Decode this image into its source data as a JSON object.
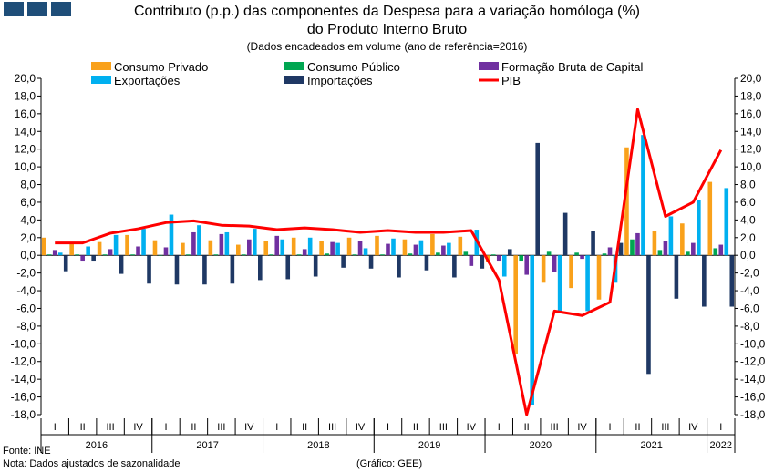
{
  "header": {
    "logo_icon": "three-blue-squares-icon",
    "title_line_1": "Contributo (p.p.) das componentes da Despesa para a variação homóloga (%)",
    "title_line_2": "do Produto Interno Bruto",
    "subtitle": "(Dados encadeados em volume (ano de referência=2016)"
  },
  "footer": {
    "source": "Fonte: INE",
    "note": "Nota: Dados ajustados de sazonalidade",
    "credit": "(Gráfico: GEE)"
  },
  "chart_data": {
    "type": "bar",
    "title": "Contributo (p.p.) das componentes da Despesa para a variação homóloga (%) do Produto Interno Bruto",
    "subtitle": "(Dados encadeados em volume (ano de referência=2016)",
    "categories": [
      "I",
      "II",
      "III",
      "IV",
      "I",
      "II",
      "III",
      "IV",
      "I",
      "II",
      "III",
      "IV",
      "I",
      "II",
      "III",
      "IV",
      "I",
      "II",
      "III",
      "IV",
      "I",
      "II",
      "III",
      "IV",
      "I"
    ],
    "years": [
      {
        "label": "2016",
        "quarters": 4
      },
      {
        "label": "2017",
        "quarters": 4
      },
      {
        "label": "2018",
        "quarters": 4
      },
      {
        "label": "2019",
        "quarters": 4
      },
      {
        "label": "2020",
        "quarters": 4
      },
      {
        "label": "2021",
        "quarters": 4
      },
      {
        "label": "2022",
        "quarters": 1
      }
    ],
    "ylim": [
      -18,
      20
    ],
    "y_ticks": [
      "20,0",
      "18,0",
      "16,0",
      "14,0",
      "12,0",
      "10,0",
      "8,0",
      "6,0",
      "4,0",
      "2,0",
      "0,0",
      "-2,0",
      "-4,0",
      "-6,0",
      "-8,0",
      "-10,0",
      "-12,0",
      "-14,0",
      "-16,0",
      "-18,0"
    ],
    "legend_placement": "top",
    "grid": false,
    "series": [
      {
        "name": "Consumo Privado",
        "kind": "bar",
        "color": "#f9a11b",
        "values": [
          2.0,
          1.4,
          1.5,
          2.3,
          1.7,
          1.4,
          1.7,
          1.2,
          1.6,
          2.0,
          1.6,
          2.0,
          2.2,
          1.8,
          2.4,
          2.1,
          -0.8,
          -11.1,
          -3.1,
          -3.7,
          -5.0,
          12.2,
          2.8,
          3.6,
          8.3
        ]
      },
      {
        "name": "Consumo Público",
        "kind": "bar",
        "color": "#00a651",
        "values": [
          0.1,
          0.1,
          0.1,
          0.1,
          0.0,
          0.1,
          0.1,
          0.1,
          0.1,
          0.1,
          0.2,
          0.1,
          0.1,
          0.2,
          0.3,
          0.4,
          0.1,
          -0.6,
          0.4,
          0.3,
          0.2,
          1.8,
          0.6,
          0.4,
          0.8
        ]
      },
      {
        "name": "Formação Bruta de Capital",
        "kind": "bar",
        "color": "#7030a0",
        "values": [
          0.6,
          -0.6,
          0.7,
          1.0,
          0.9,
          2.6,
          2.4,
          1.8,
          2.2,
          0.7,
          1.5,
          1.6,
          1.3,
          1.2,
          1.1,
          -1.2,
          -0.6,
          -2.2,
          -1.9,
          -0.4,
          0.9,
          2.5,
          1.6,
          1.4,
          1.2
        ]
      },
      {
        "name": "Exportações",
        "kind": "bar",
        "color": "#00b0f0",
        "values": [
          0.3,
          1.0,
          2.3,
          3.0,
          4.6,
          3.4,
          2.6,
          3.0,
          1.8,
          2.0,
          1.4,
          0.8,
          1.9,
          1.7,
          1.4,
          2.9,
          -2.4,
          -16.9,
          -6.4,
          -6.3,
          -3.1,
          13.6,
          4.4,
          6.2,
          7.6
        ]
      },
      {
        "name": "Importações",
        "kind": "bar",
        "color": "#1f3864",
        "values": [
          -1.8,
          -0.6,
          -2.1,
          -3.2,
          -3.3,
          -3.3,
          -3.2,
          -2.8,
          -2.7,
          -2.4,
          -1.4,
          -1.5,
          -2.5,
          -1.7,
          -2.5,
          -1.5,
          0.7,
          12.7,
          4.8,
          2.7,
          1.4,
          -13.4,
          -4.9,
          -5.8,
          -5.8
        ]
      },
      {
        "name": "PIB",
        "kind": "line",
        "color": "#ff0000",
        "values": [
          1.4,
          1.4,
          2.5,
          3.0,
          3.7,
          3.9,
          3.4,
          3.3,
          2.9,
          3.1,
          2.9,
          2.6,
          2.8,
          2.6,
          2.6,
          2.8,
          -2.8,
          -18.0,
          -6.3,
          -6.8,
          -5.3,
          16.5,
          4.4,
          6.0,
          11.9
        ]
      }
    ]
  }
}
